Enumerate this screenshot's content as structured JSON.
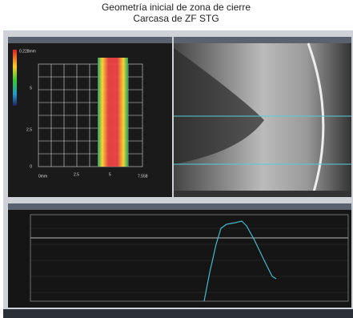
{
  "title": {
    "line1": "Geometría inicial de zona de cierre",
    "line2": "Carcasa de ZF STG"
  },
  "left_panel": {
    "x_ticks": [
      "0mm",
      "2.5",
      "5",
      "7.558"
    ],
    "y_ticks": [
      "0",
      "2.5",
      "5"
    ],
    "colorbar_top": "0.228mm"
  }
}
